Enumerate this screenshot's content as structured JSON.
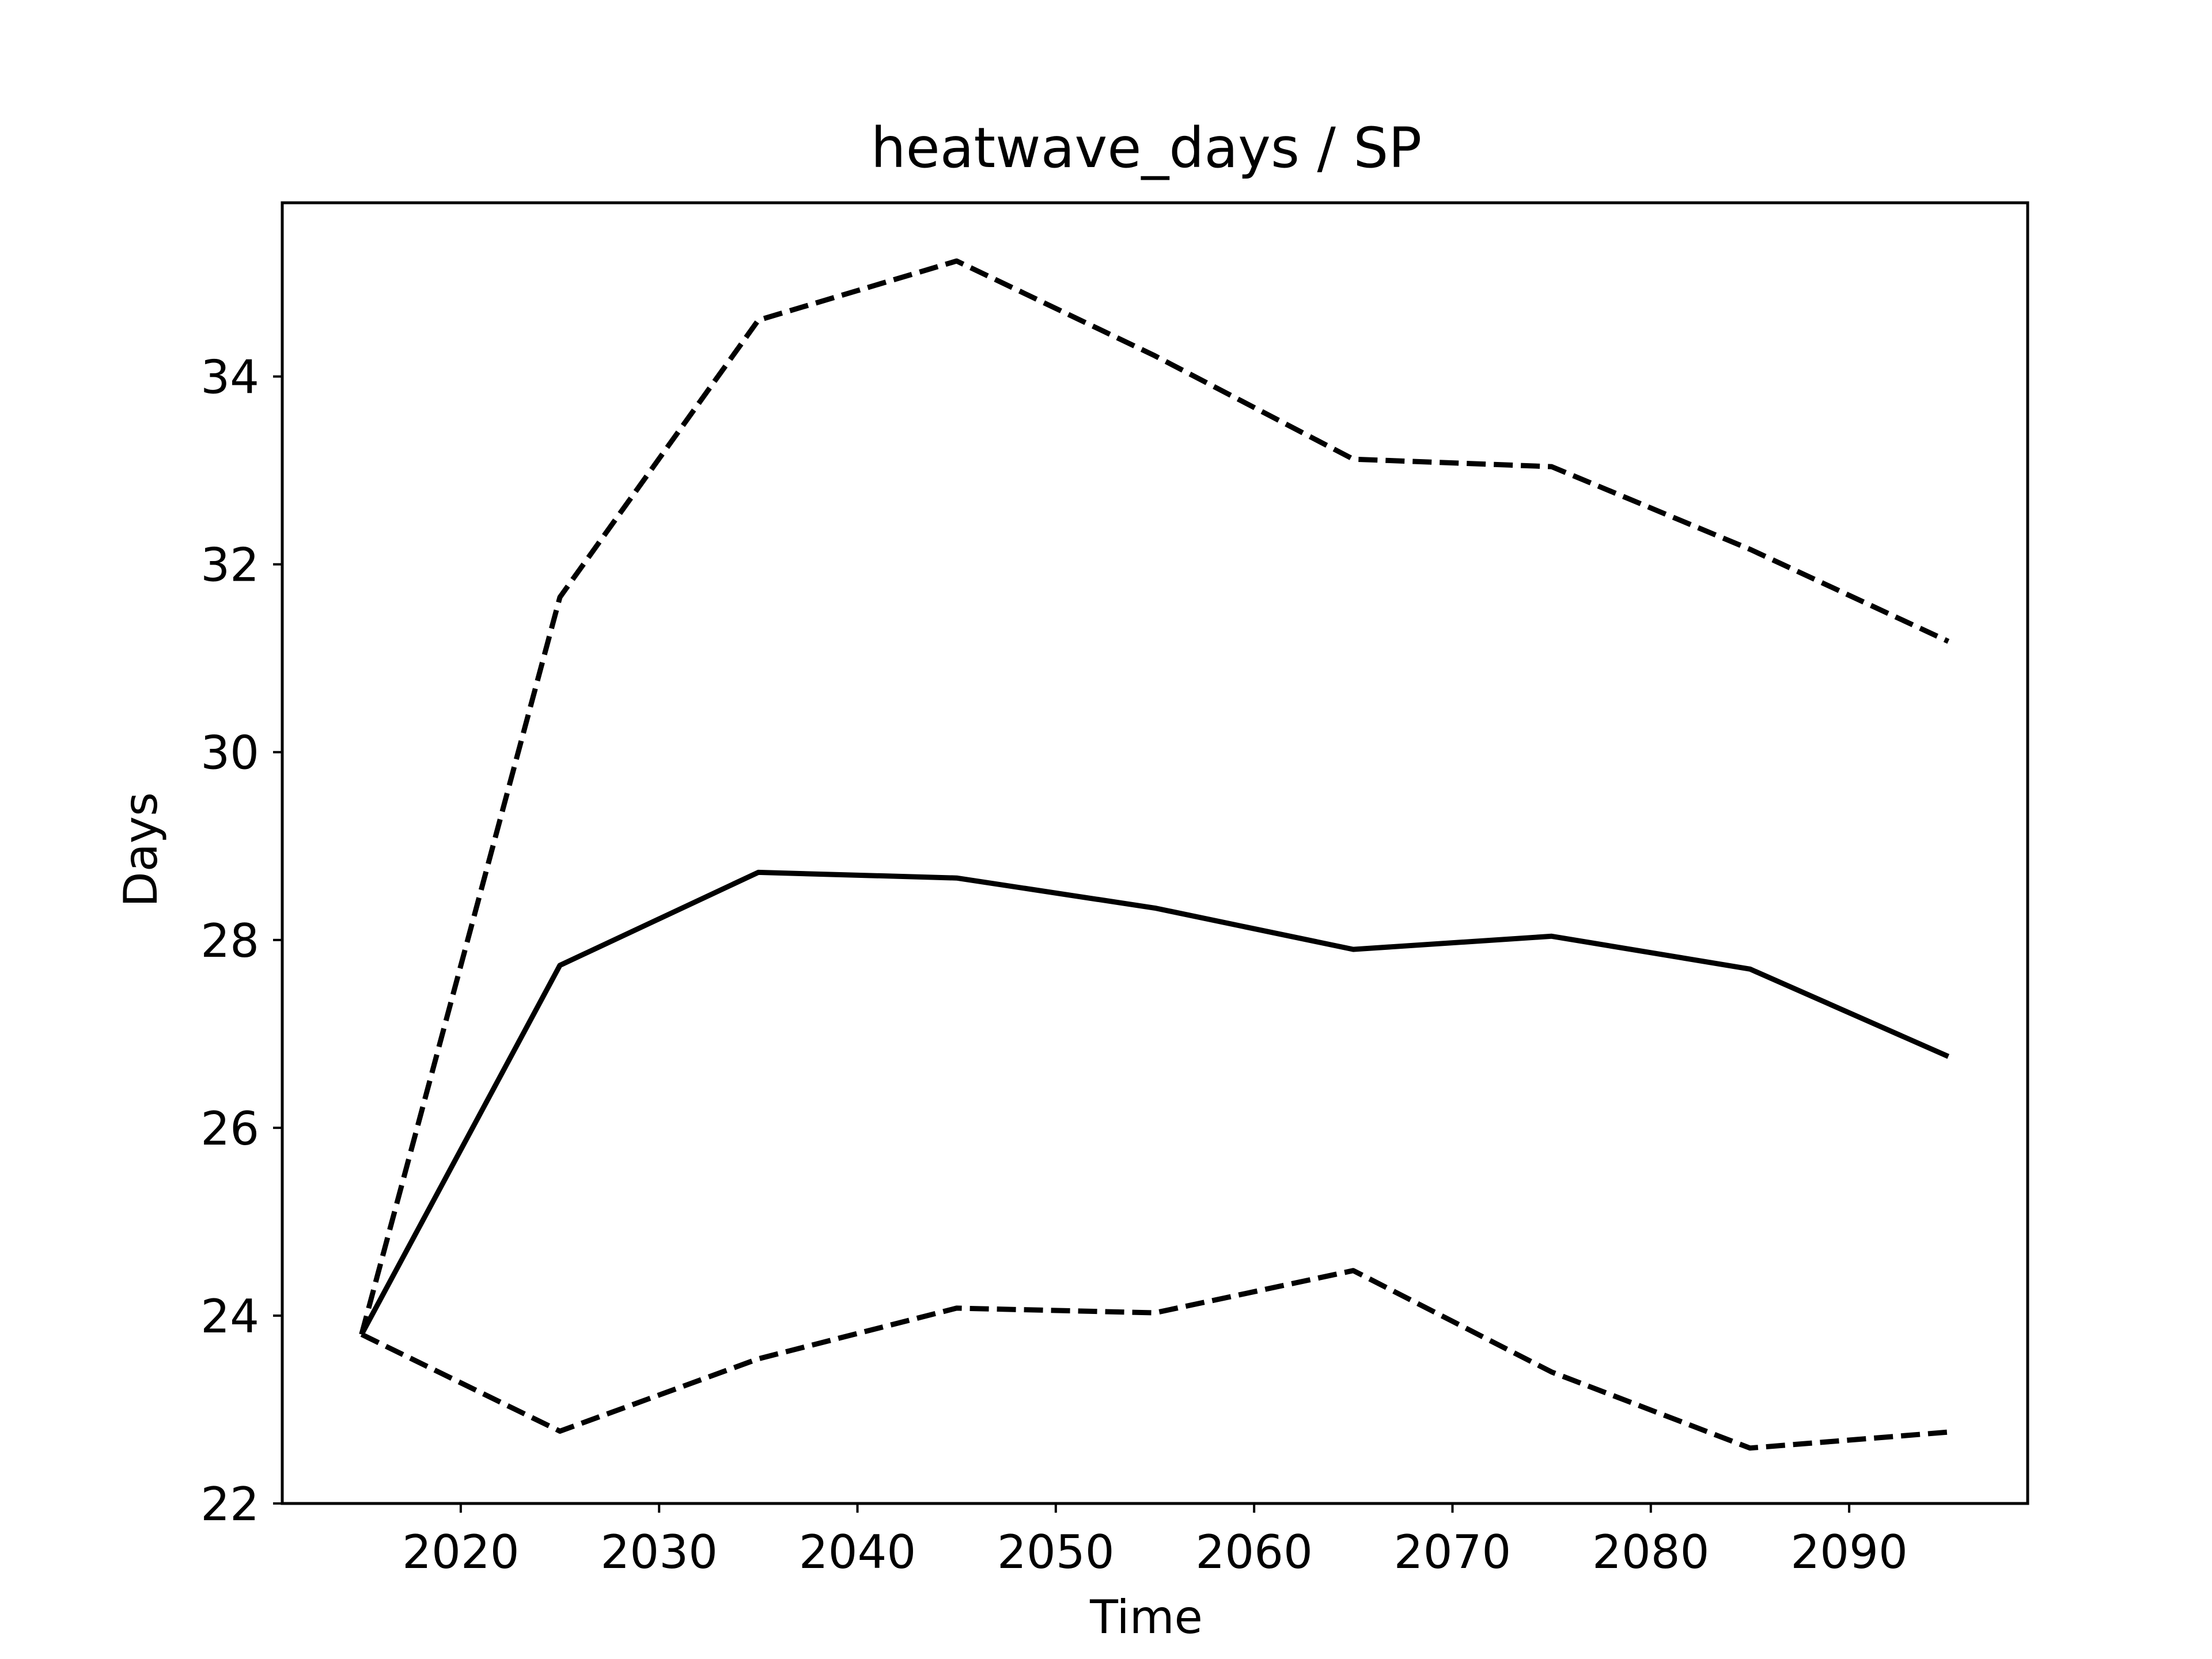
{
  "chart_data": {
    "type": "line",
    "title": "heatwave_days / SP",
    "xlabel": "Time",
    "ylabel": "Days",
    "xlim": [
      2011,
      2099
    ],
    "ylim": [
      22,
      35.85
    ],
    "xticks": [
      2020,
      2030,
      2040,
      2050,
      2060,
      2070,
      2080,
      2090
    ],
    "yticks": [
      22,
      24,
      26,
      28,
      30,
      32,
      34
    ],
    "grid": false,
    "legend": "none",
    "x": [
      2015,
      2025,
      2035,
      2045,
      2055,
      2065,
      2075,
      2085,
      2095
    ],
    "series": [
      {
        "style": "solid",
        "color": "#000000",
        "values": [
          23.8,
          27.73,
          28.72,
          28.66,
          28.34,
          27.9,
          28.04,
          27.69,
          26.76
        ]
      },
      {
        "style": "dashed",
        "color": "#000000",
        "values": [
          23.8,
          31.65,
          34.6,
          35.23,
          34.22,
          33.12,
          33.04,
          32.16,
          31.18
        ]
      },
      {
        "style": "dashed",
        "color": "#000000",
        "values": [
          23.8,
          22.77,
          23.54,
          24.08,
          24.03,
          24.48,
          23.4,
          22.59,
          22.76
        ]
      }
    ]
  }
}
